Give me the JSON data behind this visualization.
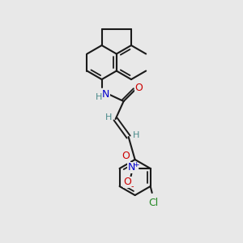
{
  "bg_color": "#e8e8e8",
  "bond_color": "#1a1a1a",
  "atom_colors": {
    "N": "#0000cc",
    "O": "#cc0000",
    "Cl": "#228822",
    "H": "#4a8a8a"
  }
}
